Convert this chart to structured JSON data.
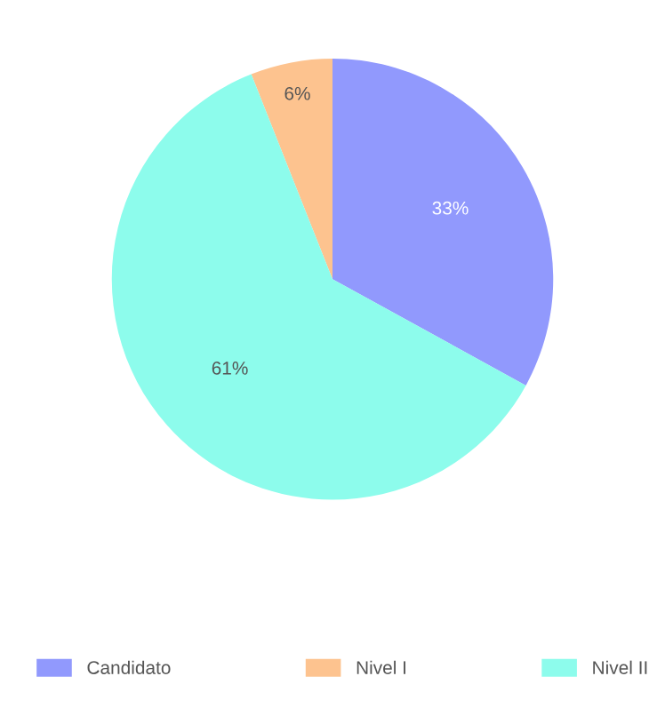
{
  "chart_data": {
    "type": "pie",
    "categories": [
      "Candidato",
      "Nivel I",
      "Nivel II"
    ],
    "values": [
      33,
      6,
      61
    ],
    "colors": [
      "#9199fd",
      "#fdc38f",
      "#8dfcec"
    ],
    "value_labels": [
      "33%",
      "6%",
      "61%"
    ],
    "legend": "bottom"
  }
}
